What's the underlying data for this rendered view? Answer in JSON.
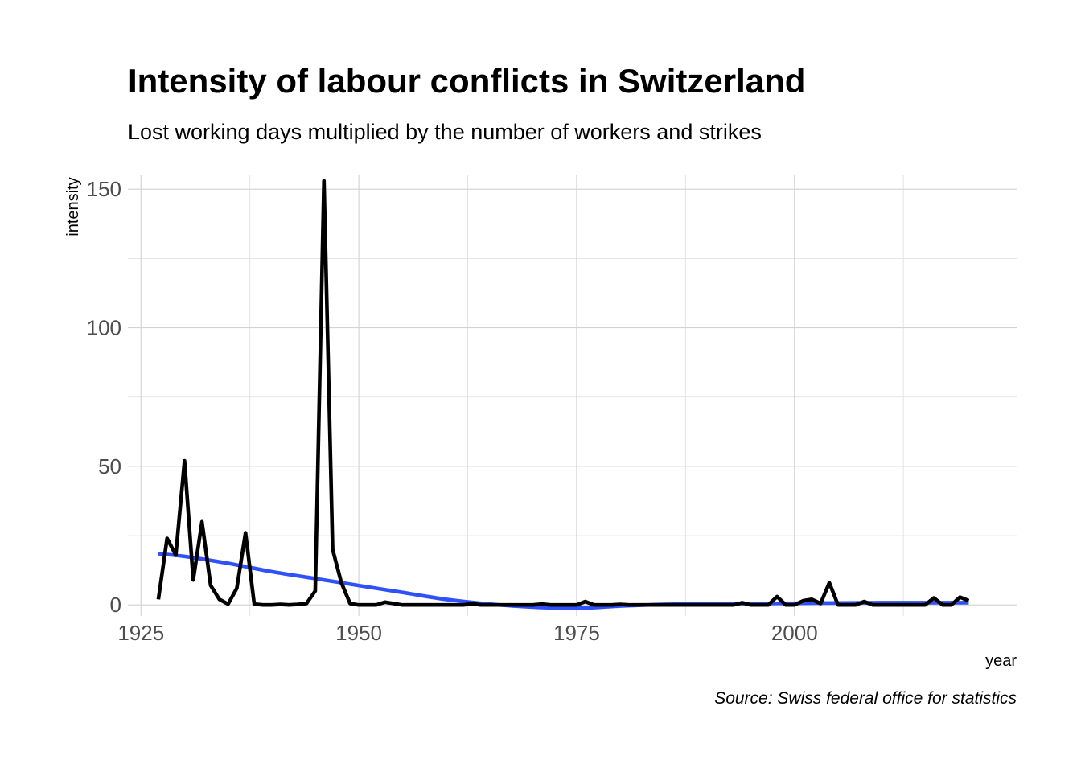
{
  "chart_data": {
    "type": "line",
    "title": "Intensity of labour conflicts in Switzerland",
    "subtitle": "Lost working days multiplied by the number of workers and strikes",
    "xlabel": "year",
    "ylabel": "intensity",
    "caption": "Source: Swiss federal office for statistics",
    "xlim": [
      1923.5,
      2025.5
    ],
    "ylim": [
      -4,
      155
    ],
    "x_ticks": [
      1925,
      1950,
      1975,
      2000
    ],
    "x_tick_labels": [
      "1925",
      "1950",
      "1975",
      "2000"
    ],
    "y_ticks": [
      0,
      50,
      100,
      150
    ],
    "y_tick_labels": [
      "0",
      "50",
      "100",
      "150"
    ],
    "grid": true,
    "legend": "none",
    "series": [
      {
        "color": "#000000",
        "style": "line",
        "x": [
          1927,
          1928,
          1929,
          1930,
          1931,
          1932,
          1933,
          1934,
          1935,
          1936,
          1937,
          1938,
          1939,
          1940,
          1941,
          1942,
          1943,
          1944,
          1945,
          1946,
          1947,
          1948,
          1949,
          1950,
          1951,
          1952,
          1953,
          1954,
          1955,
          1956,
          1957,
          1958,
          1959,
          1960,
          1961,
          1962,
          1963,
          1964,
          1965,
          1966,
          1967,
          1968,
          1969,
          1970,
          1971,
          1972,
          1973,
          1974,
          1975,
          1976,
          1977,
          1978,
          1979,
          1980,
          1981,
          1982,
          1983,
          1984,
          1985,
          1986,
          1987,
          1988,
          1989,
          1990,
          1991,
          1992,
          1993,
          1994,
          1995,
          1996,
          1997,
          1998,
          1999,
          2000,
          2001,
          2002,
          2003,
          2004,
          2005,
          2006,
          2007,
          2008,
          2009,
          2010,
          2011,
          2012,
          2013,
          2014,
          2015,
          2016,
          2017,
          2018,
          2019,
          2020
        ],
        "values": [
          2,
          24,
          18,
          52,
          9,
          30,
          7,
          2,
          0.3,
          6,
          26,
          0.3,
          0,
          0,
          0.2,
          0,
          0.2,
          0.5,
          5,
          153,
          20,
          8,
          0.5,
          0,
          0,
          0,
          1,
          0.5,
          0,
          0,
          0,
          0,
          0,
          0,
          0,
          0,
          0.4,
          0,
          0,
          0,
          0,
          0,
          0,
          0,
          0.3,
          0,
          0,
          0,
          0,
          1.2,
          0,
          0,
          0,
          0.2,
          0,
          0,
          0,
          0,
          0,
          0,
          0,
          0,
          0,
          0,
          0,
          0,
          0,
          0.8,
          0,
          0,
          0,
          3,
          0,
          0,
          1.5,
          2,
          0.5,
          8,
          0,
          0,
          0,
          1.2,
          0,
          0,
          0,
          0,
          0,
          0,
          0,
          2.5,
          0,
          0,
          2.8,
          1.5
        ]
      },
      {
        "color": "#3050f8",
        "style": "smooth",
        "x": [
          1927,
          1930,
          1935,
          1940,
          1945,
          1950,
          1955,
          1960,
          1965,
          1970,
          1975,
          1980,
          1985,
          1990,
          1995,
          2000,
          2005,
          2010,
          2015,
          2020
        ],
        "values": [
          18.5,
          17.5,
          15,
          12,
          9.5,
          7,
          4.5,
          2,
          0.3,
          -0.8,
          -1.2,
          -0.4,
          0.2,
          0.4,
          0.5,
          0.6,
          0.7,
          0.8,
          0.8,
          0.8
        ]
      }
    ]
  }
}
